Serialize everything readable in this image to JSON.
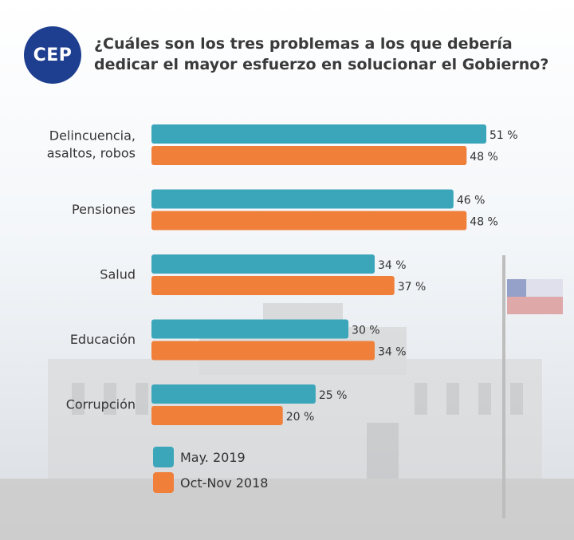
{
  "logo": {
    "text": "CEP",
    "color": "#1e3f8f"
  },
  "header": {
    "title": "¿Cuáles son los tres problemas a los que debería dedicar el mayor esfuerzo en solucionar el Gobierno?"
  },
  "chart_data": {
    "type": "bar",
    "orientation": "horizontal",
    "categories": [
      [
        "Delincuencia,",
        "asaltos, robos"
      ],
      [
        "Pensiones"
      ],
      [
        "Salud"
      ],
      [
        "Educación"
      ],
      [
        "Corrupción"
      ]
    ],
    "series": [
      {
        "name": "May. 2019",
        "values": [
          51,
          46,
          34,
          30,
          25
        ],
        "color": "#3ba6ba"
      },
      {
        "name": "Oct-Nov 2018",
        "values": [
          48,
          48,
          37,
          34,
          20
        ],
        "color": "#f07f3a"
      }
    ],
    "value_suffix": " %",
    "xlim": [
      0,
      51
    ],
    "legend": "bottom-left",
    "grid": false
  }
}
